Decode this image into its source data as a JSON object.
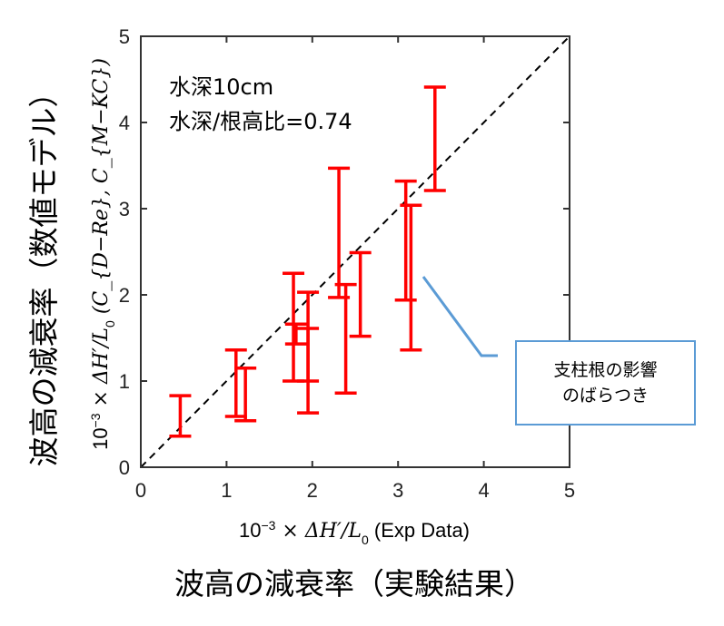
{
  "chart_data": {
    "type": "scatter",
    "subtype": "errorbar",
    "xlim": [
      0,
      5
    ],
    "ylim": [
      0,
      5
    ],
    "xticks": [
      "0",
      "1",
      "2",
      "3",
      "4",
      "5"
    ],
    "yticks": [
      "0",
      "1",
      "2",
      "3",
      "4",
      "5"
    ],
    "xlabel_math": {
      "prefix": "10",
      "exp": "−3",
      "rest": " × ΔH′/L",
      "sub": "0",
      "suffix": " (Exp Data)"
    },
    "ylabel_math": {
      "prefix": "10",
      "exp": "−3",
      "rest": " × ΔH′/L",
      "sub": "0",
      "suffix": " (C_{D−Re}, C_{M−KC})"
    },
    "xlabel_ja": "波高の減衰率（実験結果）",
    "ylabel_ja": "波高の減衰率（数値モデル）",
    "annotations": [
      "水深10cm",
      "水深/根高比=0.74"
    ],
    "reference_line": {
      "type": "y=x",
      "style": "dashed",
      "color": "#000000"
    },
    "series": [
      {
        "name": "error bars",
        "color": "#ff0000",
        "points": [
          {
            "x": 0.46,
            "low": 0.36,
            "high": 0.83
          },
          {
            "x": 1.11,
            "low": 0.59,
            "high": 1.36
          },
          {
            "x": 1.22,
            "low": 0.54,
            "high": 1.15
          },
          {
            "x": 1.78,
            "low": 1.0,
            "high": 2.25
          },
          {
            "x": 1.81,
            "low": 1.43,
            "high": 1.66
          },
          {
            "x": 1.95,
            "low": 0.63,
            "high": 2.03
          },
          {
            "x": 1.95,
            "low": 1.0,
            "high": 1.61
          },
          {
            "x": 2.31,
            "low": 1.97,
            "high": 3.47
          },
          {
            "x": 2.39,
            "low": 0.86,
            "high": 2.12
          },
          {
            "x": 2.56,
            "low": 1.52,
            "high": 2.49
          },
          {
            "x": 3.09,
            "low": 1.94,
            "high": 3.32
          },
          {
            "x": 3.15,
            "low": 1.36,
            "high": 3.04
          },
          {
            "x": 3.43,
            "low": 3.21,
            "high": 4.41
          }
        ]
      }
    ],
    "callout": {
      "lines": [
        "支柱根の影響",
        "のばらつき"
      ],
      "border_color": "#5b9bd5"
    }
  }
}
